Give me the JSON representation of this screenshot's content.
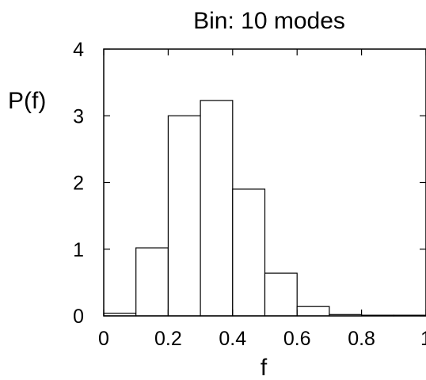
{
  "chart_data": {
    "type": "bar",
    "title": "Bin: 10 modes",
    "xlabel": "f",
    "ylabel": "P(f)",
    "bin_edges": [
      0,
      0.1,
      0.2,
      0.3,
      0.4,
      0.5,
      0.6,
      0.7,
      0.8,
      0.9,
      1.0
    ],
    "values": [
      0.04,
      1.02,
      3.0,
      3.23,
      1.9,
      0.64,
      0.14,
      0.02,
      0.01,
      0.01
    ],
    "xlim": [
      0,
      1
    ],
    "ylim": [
      0,
      4
    ],
    "x_ticks": [
      "0",
      "0.2",
      "0.4",
      "0.6",
      "0.8",
      "1"
    ],
    "x_tick_values": [
      0,
      0.2,
      0.4,
      0.6,
      0.8,
      1.0
    ],
    "y_ticks": [
      "0",
      "1",
      "2",
      "3",
      "4"
    ],
    "y_tick_values": [
      0,
      1,
      2,
      3,
      4
    ],
    "grid": false,
    "bar_fill": "#ffffff",
    "bar_stroke": "#000000"
  }
}
